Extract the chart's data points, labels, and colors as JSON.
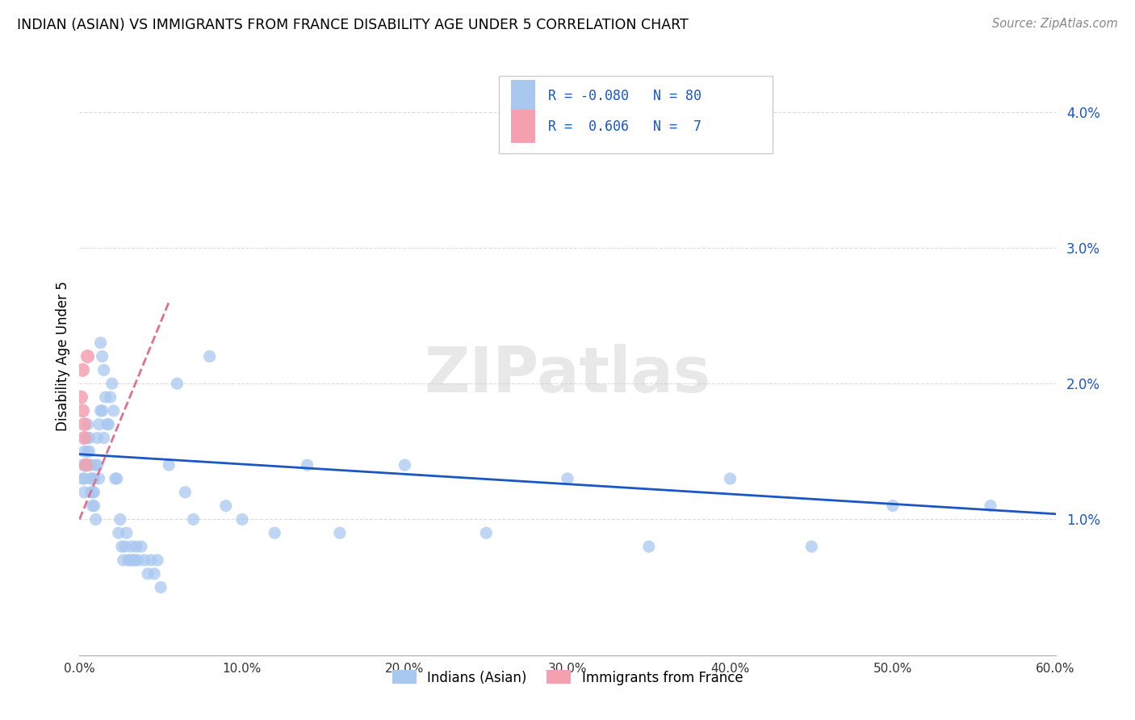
{
  "title": "INDIAN (ASIAN) VS IMMIGRANTS FROM FRANCE DISABILITY AGE UNDER 5 CORRELATION CHART",
  "source": "Source: ZipAtlas.com",
  "ylabel": "Disability Age Under 5",
  "ylim": [
    0.0,
    0.044
  ],
  "xlim": [
    0.0,
    0.6
  ],
  "ytick_vals": [
    0.01,
    0.02,
    0.03,
    0.04
  ],
  "ytick_labels": [
    "1.0%",
    "2.0%",
    "3.0%",
    "4.0%"
  ],
  "xtick_vals": [
    0.0,
    0.1,
    0.2,
    0.3,
    0.4,
    0.5,
    0.6
  ],
  "xtick_labels": [
    "0.0%",
    "10.0%",
    "20.0%",
    "30.0%",
    "40.0%",
    "50.0%",
    "60.0%"
  ],
  "color_blue": "#A8C8F0",
  "color_pink": "#F4A0B0",
  "color_line_blue": "#1A56C4",
  "color_line_pink": "#E07090",
  "color_grid": "#DDDDDD",
  "watermark": "ZIPatlas",
  "indians_x": [
    0.002,
    0.002,
    0.003,
    0.003,
    0.003,
    0.004,
    0.004,
    0.005,
    0.005,
    0.005,
    0.006,
    0.006,
    0.006,
    0.007,
    0.007,
    0.007,
    0.008,
    0.008,
    0.008,
    0.009,
    0.009,
    0.009,
    0.01,
    0.01,
    0.011,
    0.011,
    0.012,
    0.012,
    0.013,
    0.013,
    0.014,
    0.014,
    0.015,
    0.015,
    0.016,
    0.017,
    0.018,
    0.019,
    0.02,
    0.021,
    0.022,
    0.023,
    0.024,
    0.025,
    0.026,
    0.027,
    0.028,
    0.029,
    0.03,
    0.031,
    0.032,
    0.033,
    0.034,
    0.035,
    0.036,
    0.038,
    0.04,
    0.042,
    0.044,
    0.046,
    0.048,
    0.05,
    0.055,
    0.06,
    0.065,
    0.07,
    0.08,
    0.09,
    0.1,
    0.12,
    0.14,
    0.16,
    0.2,
    0.25,
    0.3,
    0.35,
    0.4,
    0.45,
    0.5,
    0.56
  ],
  "indians_y": [
    0.014,
    0.013,
    0.015,
    0.013,
    0.012,
    0.016,
    0.014,
    0.017,
    0.016,
    0.015,
    0.016,
    0.015,
    0.014,
    0.014,
    0.013,
    0.012,
    0.013,
    0.012,
    0.011,
    0.013,
    0.012,
    0.011,
    0.014,
    0.01,
    0.016,
    0.014,
    0.017,
    0.013,
    0.023,
    0.018,
    0.022,
    0.018,
    0.016,
    0.021,
    0.019,
    0.017,
    0.017,
    0.019,
    0.02,
    0.018,
    0.013,
    0.013,
    0.009,
    0.01,
    0.008,
    0.007,
    0.008,
    0.009,
    0.007,
    0.007,
    0.008,
    0.007,
    0.007,
    0.008,
    0.007,
    0.008,
    0.007,
    0.006,
    0.007,
    0.006,
    0.007,
    0.005,
    0.014,
    0.02,
    0.012,
    0.01,
    0.022,
    0.011,
    0.01,
    0.009,
    0.014,
    0.009,
    0.014,
    0.009,
    0.013,
    0.008,
    0.013,
    0.008,
    0.011,
    0.011
  ],
  "france_x": [
    0.001,
    0.002,
    0.002,
    0.003,
    0.003,
    0.004,
    0.005
  ],
  "france_y": [
    0.019,
    0.021,
    0.018,
    0.017,
    0.016,
    0.014,
    0.022
  ],
  "blue_line_x": [
    0.0,
    0.6
  ],
  "blue_line_y": [
    0.0148,
    0.0104
  ],
  "pink_line_x": [
    0.0,
    0.055
  ],
  "pink_line_y": [
    0.01,
    0.026
  ],
  "legend_lines": [
    {
      "r": "R = -0.080",
      "n": "N = 80",
      "color_swatch": "#A8C8F0"
    },
    {
      "r": "R =  0.606",
      "n": "N =  7",
      "color_swatch": "#F4A0B0"
    }
  ],
  "bottom_legend": [
    {
      "label": "Indians (Asian)",
      "color": "#A8C8F0"
    },
    {
      "label": "Immigrants from France",
      "color": "#F4A0B0"
    }
  ]
}
